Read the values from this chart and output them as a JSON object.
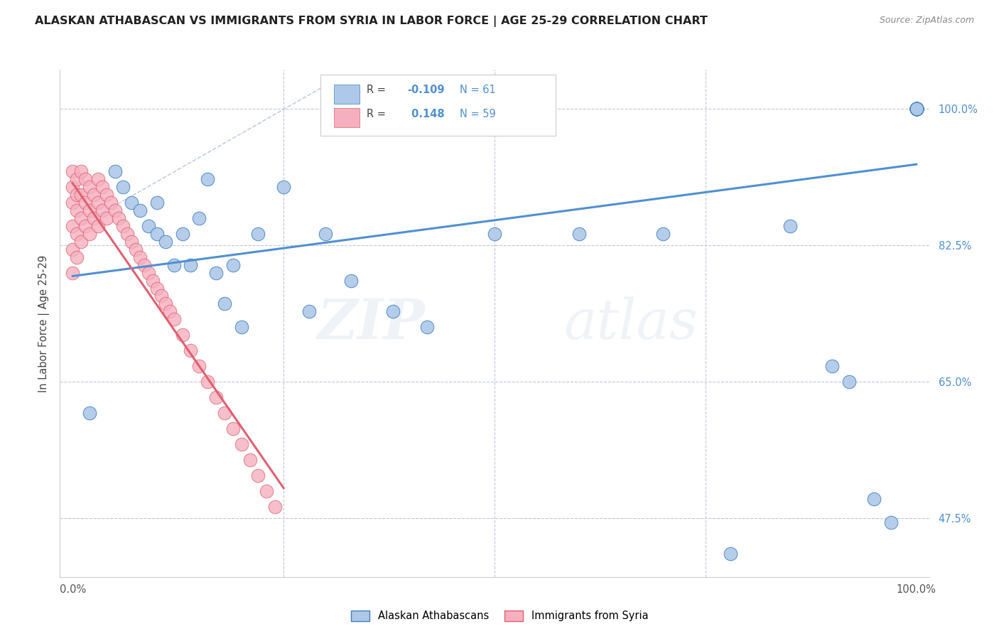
{
  "title": "ALASKAN ATHABASCAN VS IMMIGRANTS FROM SYRIA IN LABOR FORCE | AGE 25-29 CORRELATION CHART",
  "source": "Source: ZipAtlas.com",
  "ylabel": "In Labor Force | Age 25-29",
  "R_blue": -0.109,
  "N_blue": 61,
  "R_pink": 0.148,
  "N_pink": 59,
  "color_blue": "#adc8e8",
  "color_blue_line": "#5090d0",
  "color_blue_dark": "#4080c0",
  "color_pink": "#f5b0c0",
  "color_pink_line": "#e06070",
  "color_ref_line": "#b0bcd0",
  "watermark_zip": "ZIP",
  "watermark_atlas": "atlas",
  "blue_x": [
    0.02,
    0.04,
    0.06,
    0.07,
    0.08,
    0.09,
    0.1,
    0.11,
    0.12,
    0.13,
    0.14,
    0.15,
    0.16,
    0.17,
    0.18,
    0.2,
    0.22,
    0.24,
    0.28,
    0.3,
    0.35,
    0.4,
    0.5,
    0.6,
    0.7,
    0.8,
    0.85,
    0.9,
    0.92,
    1.0,
    1.0,
    1.0,
    1.0,
    1.0,
    1.0,
    1.0,
    1.0,
    1.0,
    1.0,
    1.0,
    1.0,
    1.0,
    1.0,
    1.0,
    1.0,
    1.0,
    1.0,
    1.0,
    1.0,
    1.0,
    1.0,
    1.0,
    1.0,
    1.0,
    1.0,
    1.0,
    1.0,
    1.0,
    1.0,
    1.0,
    1.0,
    1.0
  ],
  "blue_y": [
    0.61,
    0.92,
    0.9,
    0.88,
    0.84,
    0.86,
    0.83,
    0.88,
    0.81,
    0.83,
    0.8,
    0.85,
    0.91,
    0.79,
    0.74,
    0.72,
    0.84,
    0.76,
    0.72,
    0.84,
    0.75,
    0.73,
    0.84,
    0.84,
    0.84,
    0.85,
    0.84,
    0.67,
    0.65,
    1.0,
    1.0,
    1.0,
    1.0,
    1.0,
    1.0,
    1.0,
    1.0,
    1.0,
    1.0,
    1.0,
    1.0,
    1.0,
    1.0,
    1.0,
    1.0,
    1.0,
    1.0,
    1.0,
    1.0,
    1.0,
    1.0,
    1.0,
    1.0,
    1.0,
    1.0,
    1.0,
    1.0,
    1.0,
    1.0,
    1.0,
    1.0,
    1.0
  ],
  "pink_x": [
    0.0,
    0.0,
    0.0,
    0.0,
    0.0,
    0.0,
    0.0,
    0.0,
    0.01,
    0.01,
    0.01,
    0.01,
    0.01,
    0.01,
    0.02,
    0.02,
    0.02,
    0.02,
    0.03,
    0.03,
    0.03,
    0.03,
    0.04,
    0.04,
    0.04,
    0.05,
    0.05,
    0.05,
    0.06,
    0.06,
    0.07,
    0.07,
    0.08,
    0.08,
    0.09,
    0.09,
    0.1,
    0.1,
    0.11,
    0.11,
    0.12,
    0.13,
    0.14,
    0.15,
    0.16,
    0.17,
    0.18,
    0.19,
    0.2,
    0.21,
    0.22,
    0.23,
    0.24,
    0.25,
    0.26,
    0.27,
    0.28,
    0.29,
    0.3
  ],
  "pink_y": [
    0.92,
    0.9,
    0.88,
    0.86,
    0.84,
    0.82,
    0.8,
    0.78,
    0.91,
    0.89,
    0.87,
    0.85,
    0.83,
    0.81,
    0.92,
    0.89,
    0.86,
    0.83,
    0.91,
    0.88,
    0.85,
    0.82,
    0.92,
    0.89,
    0.86,
    0.91,
    0.89,
    0.86,
    0.9,
    0.87,
    0.91,
    0.88,
    0.9,
    0.87,
    0.88,
    0.85,
    0.87,
    0.84,
    0.86,
    0.83,
    0.84,
    0.82,
    0.8,
    0.78,
    0.76,
    0.74,
    0.72,
    0.7,
    0.68,
    0.66,
    0.64,
    0.62,
    0.6,
    0.58,
    0.56,
    0.54,
    0.52,
    0.5,
    0.48
  ]
}
